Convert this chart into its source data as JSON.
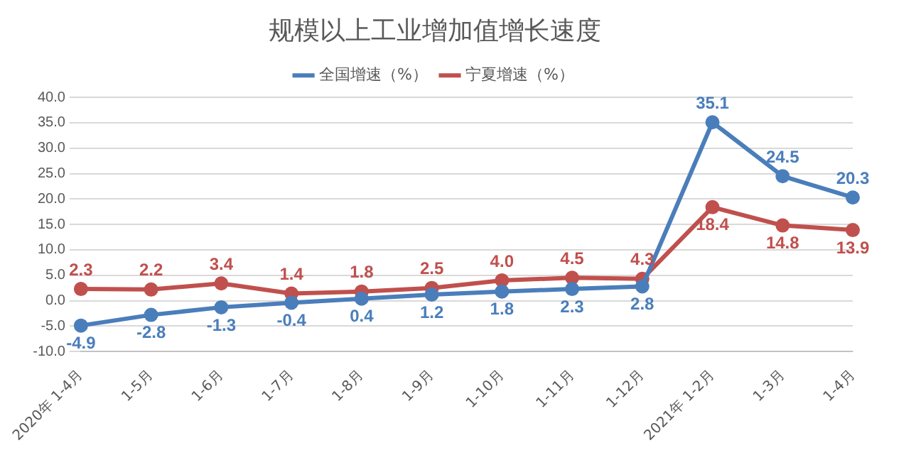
{
  "chart_data": {
    "type": "line",
    "title": "规模以上工业增加值增长速度",
    "categories": [
      "2020年 1-4月",
      "1-5月",
      "1-6月",
      "1-7月",
      "1-8月",
      "1-9月",
      "1-10月",
      "1-11月",
      "1-12月",
      "2021年 1-2月",
      "1-3月",
      "1-4月"
    ],
    "series": [
      {
        "name": "全国增速（%）",
        "color": "#4a7ebb",
        "values": [
          -4.9,
          -2.8,
          -1.3,
          -0.4,
          0.4,
          1.2,
          1.8,
          2.3,
          2.8,
          35.1,
          24.5,
          20.3
        ],
        "value_labels": [
          "-4.9",
          "-2.8",
          "-1.3",
          "-0.4",
          "0.4",
          "1.2",
          "1.8",
          "2.3",
          "2.8",
          "35.1",
          "24.5",
          "20.3"
        ]
      },
      {
        "name": "宁夏增速（%）",
        "color": "#c0504d",
        "values": [
          2.3,
          2.2,
          3.4,
          1.4,
          1.8,
          2.5,
          4.0,
          4.5,
          4.3,
          18.4,
          14.8,
          13.9
        ],
        "value_labels": [
          "2.3",
          "2.2",
          "3.4",
          "1.4",
          "1.8",
          "2.5",
          "4.0",
          "4.5",
          "4.3",
          "18.4",
          "14.8",
          "13.9"
        ]
      }
    ],
    "ylim": [
      -10,
      40
    ],
    "yticks": [
      {
        "value": -10,
        "label": "-10.0"
      },
      {
        "value": -5,
        "label": "-5.0"
      },
      {
        "value": 0,
        "label": "0.0"
      },
      {
        "value": 5,
        "label": "5.0"
      },
      {
        "value": 10,
        "label": "10.0"
      },
      {
        "value": 15,
        "label": "15.0"
      },
      {
        "value": 20,
        "label": "20.0"
      },
      {
        "value": 25,
        "label": "25.0"
      },
      {
        "value": 30,
        "label": "30.0"
      },
      {
        "value": 35,
        "label": "35.0"
      },
      {
        "value": 40,
        "label": "40.0"
      }
    ],
    "grid": "y",
    "legend": "top",
    "marker": "circle",
    "line_style": "solid"
  }
}
